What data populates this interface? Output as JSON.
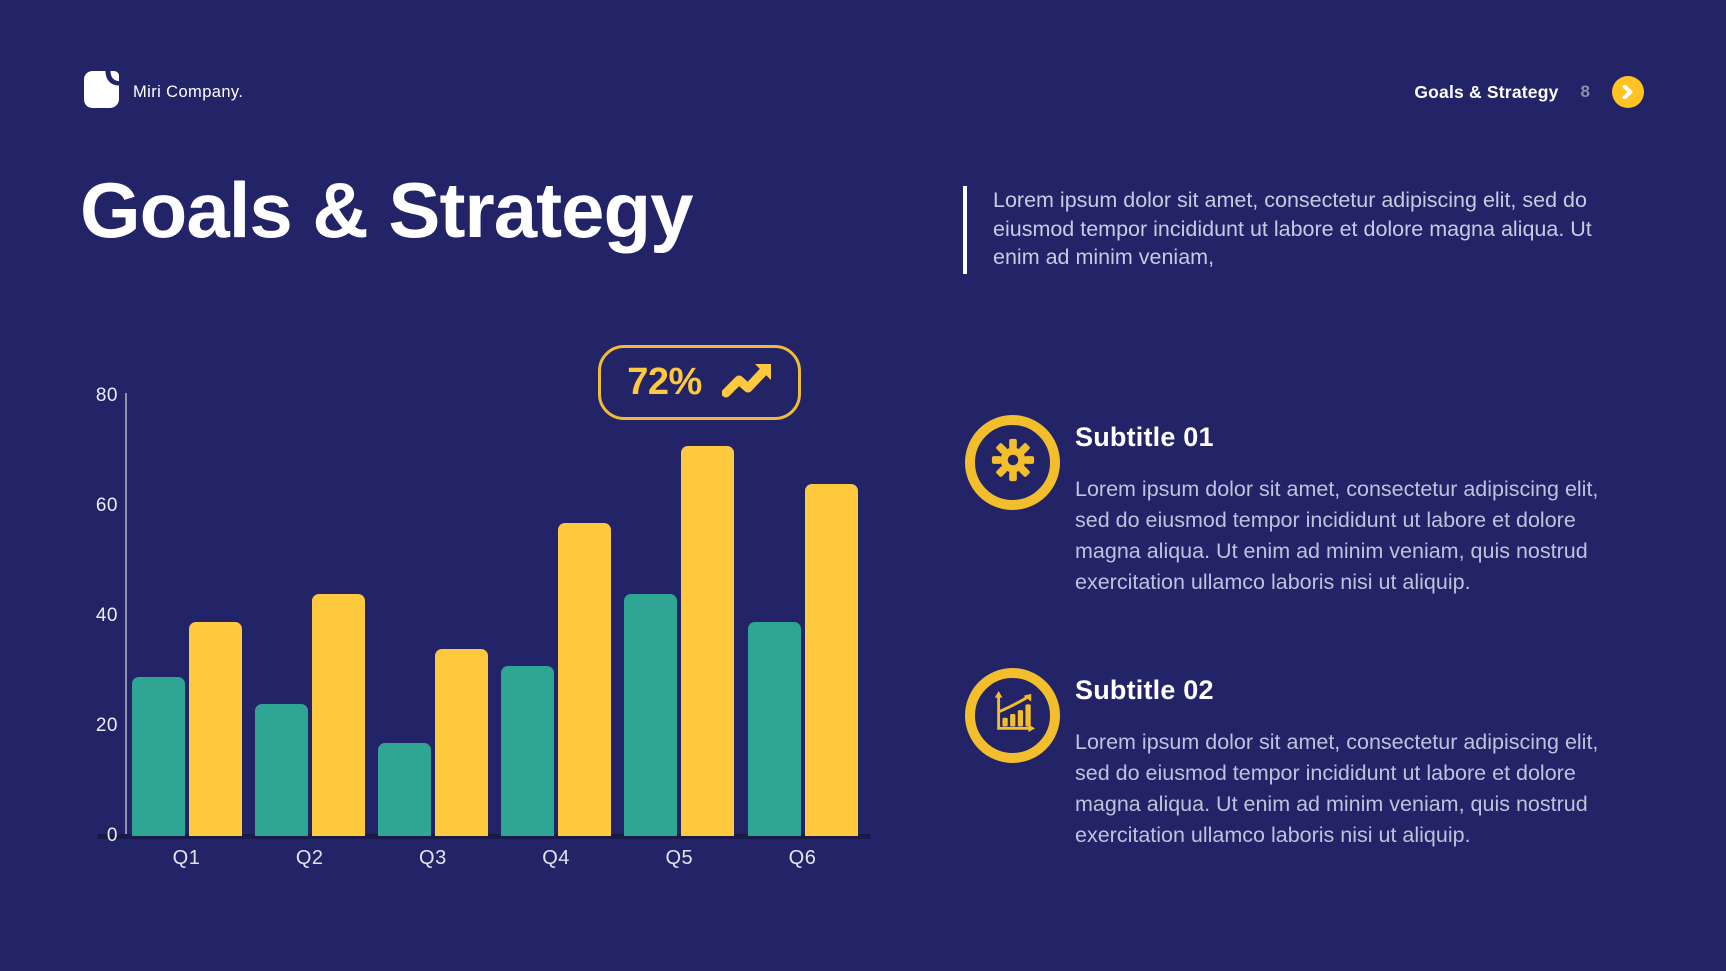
{
  "slide": {
    "background": "#232368",
    "accent_yellow": "#FFC93F",
    "accent_teal": "#2FA593",
    "text_muted": "#c8cbdf"
  },
  "header": {
    "brand": "Miri Company.",
    "section_label": "Goals & Strategy",
    "page_number": "8"
  },
  "title": "Goals & Strategy",
  "intro": "Lorem ipsum dolor sit amet, consectetur adipiscing elit, sed do eiusmod tempor incididunt ut labore et dolore magna aliqua. Ut enim ad minim veniam,",
  "badge": {
    "value": "72%",
    "icon": "trending-up-icon"
  },
  "chart_data": {
    "type": "bar",
    "categories": [
      "Q1",
      "Q2",
      "Q3",
      "Q4",
      "Q5",
      "Q6"
    ],
    "series": [
      {
        "name": "series-1",
        "color": "#2FA593",
        "values": [
          29,
          24,
          17,
          31,
          44,
          39
        ]
      },
      {
        "name": "series-2",
        "color": "#FFC93F",
        "values": [
          39,
          44,
          34,
          57,
          71,
          64
        ]
      }
    ],
    "ylim": [
      0,
      80
    ],
    "yticks": [
      0,
      20,
      40,
      60,
      80
    ],
    "grid": false,
    "legend": false,
    "annotation": "72%"
  },
  "sections": [
    {
      "icon": "gear-icon",
      "title": "Subtitle 01",
      "body": "Lorem ipsum dolor sit amet, consectetur adipiscing elit, sed do eiusmod tempor incididunt ut labore et dolore magna aliqua. Ut enim ad minim veniam, quis nostrud exercitation ullamco laboris nisi ut aliquip."
    },
    {
      "icon": "bar-chart-growth-icon",
      "title": "Subtitle 02",
      "body": "Lorem ipsum dolor sit amet, consectetur adipiscing elit, sed do eiusmod tempor incididunt ut labore et dolore magna aliqua. Ut enim ad minim veniam, quis nostrud exercitation ullamco laboris nisi ut aliquip."
    }
  ]
}
